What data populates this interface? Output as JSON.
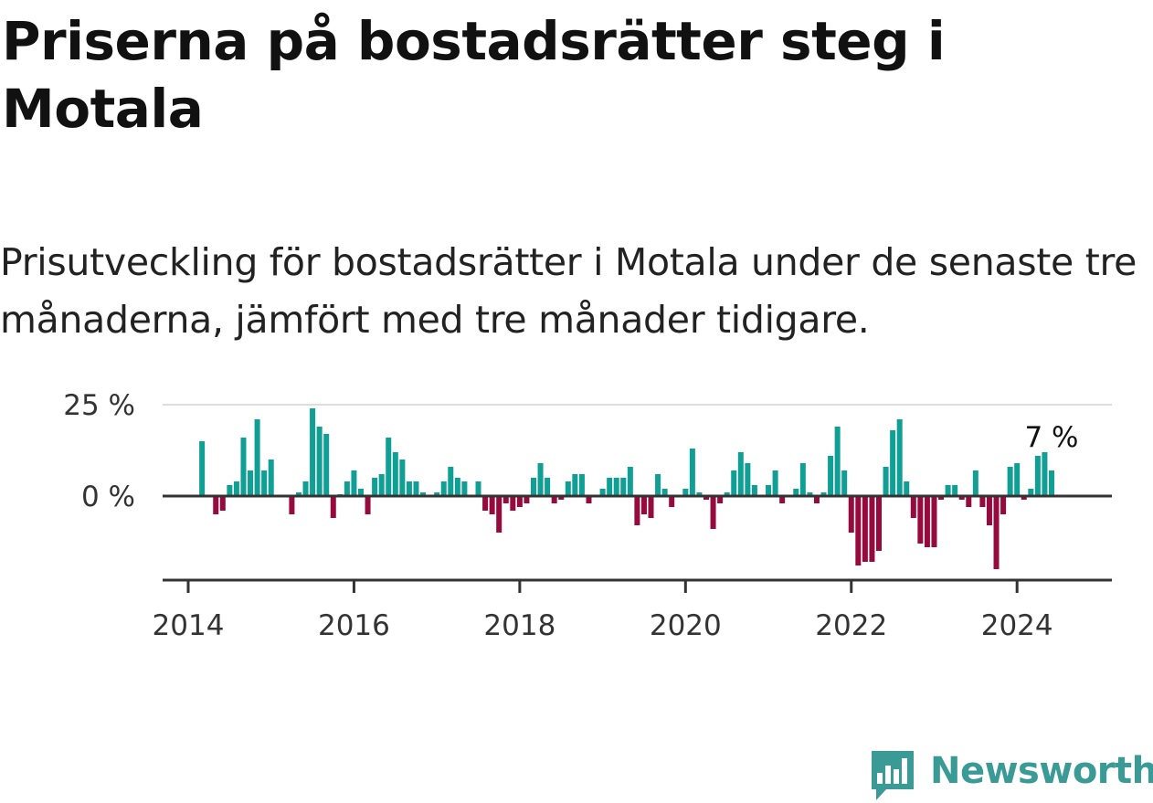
{
  "title": "Priserna på bostadsrätter steg i Motala",
  "subtitle": "Prisutveckling för bostadsrätter i Motala under de senaste tre månaderna, jämfört med tre månader tidigare.",
  "brand": {
    "name": "Newsworthy",
    "color": "#3a9a96",
    "icon": "newsworthy-bar-chart-logo-icon"
  },
  "colors": {
    "positive": "#0f9f94",
    "negative": "#960a3e",
    "gridline": "#dddddd",
    "zero_line": "#333333",
    "axis": "#333333"
  },
  "chart_data": {
    "type": "bar",
    "title": "",
    "xlabel": "",
    "ylabel": "",
    "ylim": [
      -23,
      25
    ],
    "yticks": [
      {
        "value": 25,
        "label": "25 %"
      },
      {
        "value": 0,
        "label": "0 %"
      }
    ],
    "xticks": [
      {
        "value": "2014-01",
        "label": "2014"
      },
      {
        "value": "2016-01",
        "label": "2016"
      },
      {
        "value": "2018-01",
        "label": "2018"
      },
      {
        "value": "2020-01",
        "label": "2020"
      },
      {
        "value": "2022-01",
        "label": "2022"
      },
      {
        "value": "2024-01",
        "label": "2024"
      }
    ],
    "grid": true,
    "annotation": {
      "month": "2024-06",
      "label": "7 %"
    },
    "series": [
      {
        "values": [
          {
            "month": "2014-03",
            "value": 15
          },
          {
            "month": "2014-05",
            "value": -5
          },
          {
            "month": "2014-06",
            "value": -4
          },
          {
            "month": "2014-07",
            "value": 3
          },
          {
            "month": "2014-08",
            "value": 4
          },
          {
            "month": "2014-09",
            "value": 16
          },
          {
            "month": "2014-10",
            "value": 7
          },
          {
            "month": "2014-11",
            "value": 21
          },
          {
            "month": "2014-12",
            "value": 7
          },
          {
            "month": "2015-01",
            "value": 10
          },
          {
            "month": "2015-04",
            "value": -5
          },
          {
            "month": "2015-05",
            "value": 1
          },
          {
            "month": "2015-06",
            "value": 4
          },
          {
            "month": "2015-07",
            "value": 24
          },
          {
            "month": "2015-08",
            "value": 19
          },
          {
            "month": "2015-09",
            "value": 17
          },
          {
            "month": "2015-10",
            "value": -6
          },
          {
            "month": "2015-11",
            "value": 0.5
          },
          {
            "month": "2015-12",
            "value": 4
          },
          {
            "month": "2016-01",
            "value": 7
          },
          {
            "month": "2016-02",
            "value": 2
          },
          {
            "month": "2016-03",
            "value": -5
          },
          {
            "month": "2016-04",
            "value": 5
          },
          {
            "month": "2016-05",
            "value": 6
          },
          {
            "month": "2016-06",
            "value": 16
          },
          {
            "month": "2016-07",
            "value": 12
          },
          {
            "month": "2016-08",
            "value": 10
          },
          {
            "month": "2016-09",
            "value": 4
          },
          {
            "month": "2016-10",
            "value": 4
          },
          {
            "month": "2016-11",
            "value": 1
          },
          {
            "month": "2017-01",
            "value": 1
          },
          {
            "month": "2017-02",
            "value": 4
          },
          {
            "month": "2017-03",
            "value": 8
          },
          {
            "month": "2017-04",
            "value": 5
          },
          {
            "month": "2017-05",
            "value": 4
          },
          {
            "month": "2017-07",
            "value": 4
          },
          {
            "month": "2017-08",
            "value": -4
          },
          {
            "month": "2017-09",
            "value": -5
          },
          {
            "month": "2017-10",
            "value": -10
          },
          {
            "month": "2017-11",
            "value": -2
          },
          {
            "month": "2017-12",
            "value": -4
          },
          {
            "month": "2018-01",
            "value": -3
          },
          {
            "month": "2018-02",
            "value": -2
          },
          {
            "month": "2018-03",
            "value": 5
          },
          {
            "month": "2018-04",
            "value": 9
          },
          {
            "month": "2018-05",
            "value": 5
          },
          {
            "month": "2018-06",
            "value": -2
          },
          {
            "month": "2018-07",
            "value": -1
          },
          {
            "month": "2018-08",
            "value": 4
          },
          {
            "month": "2018-09",
            "value": 6
          },
          {
            "month": "2018-10",
            "value": 6
          },
          {
            "month": "2018-11",
            "value": -2
          },
          {
            "month": "2019-01",
            "value": 2
          },
          {
            "month": "2019-02",
            "value": 5
          },
          {
            "month": "2019-03",
            "value": 5
          },
          {
            "month": "2019-04",
            "value": 5
          },
          {
            "month": "2019-05",
            "value": 8
          },
          {
            "month": "2019-06",
            "value": -8
          },
          {
            "month": "2019-07",
            "value": -5
          },
          {
            "month": "2019-08",
            "value": -6
          },
          {
            "month": "2019-09",
            "value": 6
          },
          {
            "month": "2019-10",
            "value": 2
          },
          {
            "month": "2019-11",
            "value": -3
          },
          {
            "month": "2020-01",
            "value": 2
          },
          {
            "month": "2020-02",
            "value": 13
          },
          {
            "month": "2020-03",
            "value": 1
          },
          {
            "month": "2020-04",
            "value": -1
          },
          {
            "month": "2020-05",
            "value": -9
          },
          {
            "month": "2020-06",
            "value": -2
          },
          {
            "month": "2020-07",
            "value": 1
          },
          {
            "month": "2020-08",
            "value": 7
          },
          {
            "month": "2020-09",
            "value": 12
          },
          {
            "month": "2020-10",
            "value": 9
          },
          {
            "month": "2020-11",
            "value": 3
          },
          {
            "month": "2021-01",
            "value": 3
          },
          {
            "month": "2021-02",
            "value": 7
          },
          {
            "month": "2021-03",
            "value": -2
          },
          {
            "month": "2021-05",
            "value": 2
          },
          {
            "month": "2021-06",
            "value": 9
          },
          {
            "month": "2021-07",
            "value": 1
          },
          {
            "month": "2021-08",
            "value": -2
          },
          {
            "month": "2021-09",
            "value": 1
          },
          {
            "month": "2021-10",
            "value": 11
          },
          {
            "month": "2021-11",
            "value": 19
          },
          {
            "month": "2021-12",
            "value": 7
          },
          {
            "month": "2022-01",
            "value": -10
          },
          {
            "month": "2022-02",
            "value": -19
          },
          {
            "month": "2022-03",
            "value": -18
          },
          {
            "month": "2022-04",
            "value": -18
          },
          {
            "month": "2022-05",
            "value": -15
          },
          {
            "month": "2022-06",
            "value": 8
          },
          {
            "month": "2022-07",
            "value": 18
          },
          {
            "month": "2022-08",
            "value": 21
          },
          {
            "month": "2022-09",
            "value": 4
          },
          {
            "month": "2022-10",
            "value": -6
          },
          {
            "month": "2022-11",
            "value": -13
          },
          {
            "month": "2022-12",
            "value": -14
          },
          {
            "month": "2023-01",
            "value": -14
          },
          {
            "month": "2023-02",
            "value": -1
          },
          {
            "month": "2023-03",
            "value": 3
          },
          {
            "month": "2023-04",
            "value": 3
          },
          {
            "month": "2023-05",
            "value": -1
          },
          {
            "month": "2023-06",
            "value": -3
          },
          {
            "month": "2023-07",
            "value": 7
          },
          {
            "month": "2023-08",
            "value": -3
          },
          {
            "month": "2023-09",
            "value": -8
          },
          {
            "month": "2023-10",
            "value": -20
          },
          {
            "month": "2023-11",
            "value": -5
          },
          {
            "month": "2023-12",
            "value": 8
          },
          {
            "month": "2024-01",
            "value": 9
          },
          {
            "month": "2024-02",
            "value": -1
          },
          {
            "month": "2024-03",
            "value": 2
          },
          {
            "month": "2024-04",
            "value": 11
          },
          {
            "month": "2024-05",
            "value": 12
          },
          {
            "month": "2024-06",
            "value": 7
          }
        ]
      }
    ]
  }
}
